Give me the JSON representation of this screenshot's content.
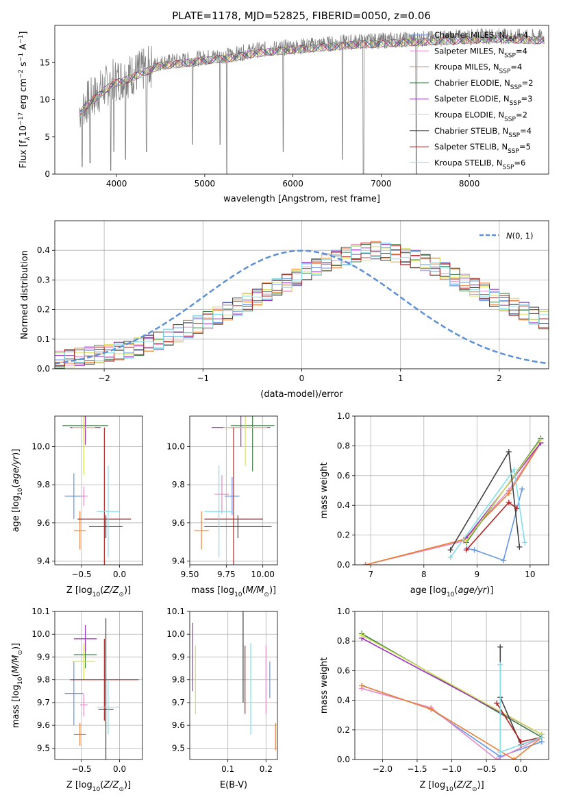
{
  "figure_title": "PLATE=1178, MJD=52825, FIBERID=0050, z=0.06",
  "colors": {
    "Chabrier MILES": "#6495ed",
    "Salpeter MILES": "#e78ac3",
    "Kroupa MILES": "#ed7d31",
    "Chabrier ELODIE": "#3a7d44",
    "Salpeter ELODIE": "#9b30c0",
    "Kroupa ELODIE": "#d4e157",
    "Chabrier STELIB": "#404040",
    "Salpeter STELIB": "#b22222",
    "Kroupa STELIB": "#80deea",
    "data": "#808080",
    "normal": "#5b8fd8"
  },
  "chart_data": [
    {
      "type": "line",
      "panel": "spectrum",
      "xlabel": "wavelength [Angstrom, rest frame]",
      "ylabel": "Flux [f_λ 10^-17 erg cm^-2 s^-1 A^-1]",
      "xlim": [
        3300,
        8900
      ],
      "ylim": [
        0,
        20
      ],
      "xticks": [
        "4000",
        "5000",
        "6000",
        "7000",
        "8000"
      ],
      "yticks": [
        "0",
        "5",
        "10",
        "15"
      ],
      "grid": false,
      "legend_position": "right",
      "legend": [
        {
          "model": "Chabrier MILES",
          "label": "Chabrier MILES, N",
          "sub": "SSP",
          "suffix": "=4"
        },
        {
          "model": "Salpeter MILES",
          "label": "Salpeter MILES, N",
          "sub": "SSP",
          "suffix": "=4"
        },
        {
          "model": "Kroupa MILES",
          "label": "Kroupa MILES, N",
          "sub": "SSP",
          "suffix": "=4"
        },
        {
          "model": "Chabrier ELODIE",
          "label": "Chabrier ELODIE, N",
          "sub": "SSP",
          "suffix": "=2"
        },
        {
          "model": "Salpeter ELODIE",
          "label": "Salpeter ELODIE, N",
          "sub": "SSP",
          "suffix": "=3"
        },
        {
          "model": "Kroupa ELODIE",
          "label": "Kroupa ELODIE, N",
          "sub": "SSP",
          "suffix": "=2"
        },
        {
          "model": "Chabrier STELIB",
          "label": "Chabrier STELIB, N",
          "sub": "SSP",
          "suffix": "=4"
        },
        {
          "model": "Salpeter STELIB",
          "label": "Salpeter STELIB, N",
          "sub": "SSP",
          "suffix": "=5"
        },
        {
          "model": "Kroupa STELIB",
          "label": "Kroupa STELIB, N",
          "sub": "SSP",
          "suffix": "=6"
        }
      ],
      "continuum": [
        [
          3580,
          8.5
        ],
        [
          3650,
          9.5
        ],
        [
          3750,
          10.5
        ],
        [
          3850,
          11.5
        ],
        [
          3950,
          12.5
        ],
        [
          4100,
          13.0
        ],
        [
          4300,
          14.0
        ],
        [
          4500,
          15.0
        ],
        [
          4700,
          15.2
        ],
        [
          4900,
          15.5
        ],
        [
          5100,
          15.8
        ],
        [
          5300,
          16.0
        ],
        [
          5500,
          16.5
        ],
        [
          5700,
          16.8
        ],
        [
          5900,
          17.0
        ],
        [
          6100,
          17.2
        ],
        [
          6300,
          17.4
        ],
        [
          6500,
          17.6
        ],
        [
          6700,
          17.8
        ],
        [
          6900,
          17.9
        ],
        [
          7100,
          18.0
        ],
        [
          7300,
          18.1
        ],
        [
          7500,
          18.2
        ],
        [
          7700,
          18.3
        ],
        [
          7900,
          18.4
        ],
        [
          8100,
          18.5
        ],
        [
          8300,
          18.6
        ],
        [
          8500,
          18.5
        ],
        [
          8700,
          18.4
        ],
        [
          8850,
          18.4
        ]
      ],
      "absorption_features": [
        [
          3610,
          1.0
        ],
        [
          3700,
          1.5
        ],
        [
          3934,
          0.5
        ],
        [
          3969,
          3.0
        ],
        [
          4102,
          2.0
        ],
        [
          4340,
          3.0
        ],
        [
          4861,
          4.0
        ],
        [
          5175,
          4.0
        ],
        [
          5250,
          0.0
        ],
        [
          5890,
          3.0
        ],
        [
          6563,
          2.0
        ],
        [
          6800,
          0.0
        ],
        [
          7400,
          0.0
        ]
      ]
    },
    {
      "type": "bar",
      "panel": "residual histogram",
      "xlabel": "(data-model)/error",
      "ylabel": "Normed distribution",
      "xlim": [
        -2.5,
        2.5
      ],
      "ylim": [
        0,
        0.5
      ],
      "xticks": [
        "−2",
        "−1",
        "0",
        "1",
        "2"
      ],
      "yticks": [
        "0.0",
        "0.1",
        "0.2",
        "0.3",
        "0.4"
      ],
      "grid": true,
      "legend_position": "top-right",
      "reference_label": "N(0,1)",
      "bin_width": 0.1,
      "bin_start": -2.5,
      "density_values": [
        0.03,
        0.035,
        0.04,
        0.045,
        0.05,
        0.055,
        0.06,
        0.065,
        0.075,
        0.085,
        0.095,
        0.105,
        0.12,
        0.135,
        0.15,
        0.165,
        0.18,
        0.195,
        0.21,
        0.225,
        0.24,
        0.26,
        0.275,
        0.29,
        0.31,
        0.33,
        0.345,
        0.36,
        0.37,
        0.38,
        0.39,
        0.395,
        0.4,
        0.395,
        0.39,
        0.38,
        0.37,
        0.36,
        0.345,
        0.33,
        0.31,
        0.29,
        0.275,
        0.26,
        0.24,
        0.225,
        0.21,
        0.195,
        0.18,
        0.165,
        0.15,
        0.135,
        0.12,
        0.105,
        0.095,
        0.085,
        0.075,
        0.065,
        0.06,
        0.055,
        0.05,
        0.045,
        0.04,
        0.035,
        0.03
      ]
    },
    {
      "type": "scatter",
      "panel": "age vs Z",
      "xlabel": "Z [log10(Z/Z⊙)]",
      "ylabel": "age [log10(age/yr)]",
      "xlim": [
        -0.85,
        0.3
      ],
      "ylim": [
        9.38,
        10.16
      ],
      "xticks": [
        "−0.5",
        "0.0"
      ],
      "yticks": [
        "9.4",
        "9.6",
        "9.8",
        "10.0"
      ],
      "grid": true,
      "points": [
        {
          "model": "Chabrier MILES",
          "x": -0.6,
          "y": 9.74,
          "xerr": 0.12,
          "yerr": 0.12
        },
        {
          "model": "Salpeter MILES",
          "x": -0.47,
          "y": 9.74,
          "xerr": 0.05,
          "yerr": 0.05
        },
        {
          "model": "Kroupa MILES",
          "x": -0.52,
          "y": 9.56,
          "xerr": 0.08,
          "yerr": 0.1
        },
        {
          "model": "Chabrier ELODIE",
          "x": -0.45,
          "y": 10.11,
          "xerr": 0.3,
          "yerr": 0.1
        },
        {
          "model": "Salpeter ELODIE",
          "x": -0.45,
          "y": 10.1,
          "xerr": 0.2,
          "yerr": 0.09
        },
        {
          "model": "Kroupa ELODIE",
          "x": -0.47,
          "y": 10.1,
          "xerr": 0.15,
          "yerr": 0.25
        },
        {
          "model": "Chabrier STELIB",
          "x": -0.18,
          "y": 9.58,
          "xerr": 0.22,
          "yerr": 0.06
        },
        {
          "model": "Salpeter STELIB",
          "x": -0.2,
          "y": 9.62,
          "xerr": 0.35,
          "yerr": 0.48
        },
        {
          "model": "Kroupa STELIB",
          "x": -0.15,
          "y": 9.66,
          "xerr": 0.15,
          "yerr": 0.24
        }
      ]
    },
    {
      "type": "scatter",
      "panel": "age vs mass",
      "xlabel": "mass [log10(M/M⊙)]",
      "ylabel": "",
      "xlim": [
        9.5,
        10.1
      ],
      "ylim": [
        9.38,
        10.16
      ],
      "xticks": [
        "9.50",
        "9.75",
        "10.00"
      ],
      "yticks": [
        "9.4",
        "9.6",
        "9.8",
        "10.0"
      ],
      "grid": true,
      "points": [
        {
          "model": "Chabrier MILES",
          "x": 9.79,
          "y": 9.74,
          "xerr": 0.05,
          "yerr": 0.1
        },
        {
          "model": "Salpeter MILES",
          "x": 9.72,
          "y": 9.75,
          "xerr": 0.05,
          "yerr": 0.1
        },
        {
          "model": "Kroupa MILES",
          "x": 9.58,
          "y": 9.56,
          "xerr": 0.05,
          "yerr": 0.1
        },
        {
          "model": "Chabrier ELODIE",
          "x": 9.93,
          "y": 10.11,
          "xerr": 0.15,
          "yerr": 0.24
        },
        {
          "model": "Salpeter ELODIE",
          "x": 9.85,
          "y": 10.1,
          "xerr": 0.2,
          "yerr": 0.1
        },
        {
          "model": "Kroupa ELODIE",
          "x": 9.88,
          "y": 10.1,
          "xerr": 0.15,
          "yerr": 0.2
        },
        {
          "model": "Chabrier STELIB",
          "x": 9.83,
          "y": 9.58,
          "xerr": 0.23,
          "yerr": 0.06
        },
        {
          "model": "Salpeter STELIB",
          "x": 9.8,
          "y": 9.62,
          "xerr": 0.2,
          "yerr": 0.48
        },
        {
          "model": "Kroupa STELIB",
          "x": 9.7,
          "y": 9.66,
          "xerr": 0.1,
          "yerr": 0.24
        }
      ]
    },
    {
      "type": "line",
      "panel": "mass weight vs age",
      "xlabel": "age [log10(age/yr)]",
      "ylabel": "mass weight",
      "xlim": [
        6.7,
        10.35
      ],
      "ylim": [
        0,
        1
      ],
      "xticks": [
        "7",
        "8",
        "9",
        "10"
      ],
      "yticks": [
        "0.0",
        "0.2",
        "0.4",
        "0.6",
        "0.8",
        "1.0"
      ],
      "grid": true,
      "series": [
        {
          "model": "Chabrier MILES",
          "x": [
            8.81,
            8.95,
            9.5,
            9.85
          ],
          "y": [
            0.11,
            0.1,
            0.03,
            0.51
          ]
        },
        {
          "model": "Salpeter MILES",
          "x": [
            6.9,
            8.75,
            9.6,
            10.2
          ],
          "y": [
            0.0,
            0.16,
            0.5,
            0.82
          ]
        },
        {
          "model": "Kroupa MILES",
          "x": [
            6.9,
            8.75,
            9.6,
            10.2
          ],
          "y": [
            0.0,
            0.17,
            0.48,
            0.82
          ]
        },
        {
          "model": "Chabrier ELODIE",
          "x": [
            8.8,
            10.2
          ],
          "y": [
            0.15,
            0.85
          ]
        },
        {
          "model": "Salpeter ELODIE",
          "x": [
            8.8,
            10.2
          ],
          "y": [
            0.18,
            0.82
          ]
        },
        {
          "model": "Kroupa ELODIE",
          "x": [
            8.8,
            10.2
          ],
          "y": [
            0.16,
            0.84
          ]
        },
        {
          "model": "Chabrier STELIB",
          "x": [
            8.5,
            9.6,
            9.8
          ],
          "y": [
            0.1,
            0.76,
            0.12
          ]
        },
        {
          "model": "Salpeter STELIB",
          "x": [
            8.8,
            9.6,
            9.75
          ],
          "y": [
            0.1,
            0.42,
            0.38
          ]
        },
        {
          "model": "Kroupa STELIB",
          "x": [
            8.5,
            9.7,
            9.9
          ],
          "y": [
            0.05,
            0.64,
            0.15
          ]
        }
      ]
    },
    {
      "type": "scatter",
      "panel": "mass vs Z",
      "xlabel": "Z [log10(Z/Z⊙)]",
      "ylabel": "mass [log10(M/M⊙)]",
      "xlim": [
        -0.85,
        0.3
      ],
      "ylim": [
        9.45,
        10.1
      ],
      "xticks": [
        "−0.5",
        "0.0"
      ],
      "yticks": [
        "9.5",
        "9.6",
        "9.7",
        "9.8",
        "9.9",
        "10.0",
        "10.1"
      ],
      "grid": true,
      "points": [
        {
          "model": "Chabrier MILES",
          "x": -0.6,
          "y": 9.74,
          "xerr": 0.12,
          "yerr": 0.14
        },
        {
          "model": "Salpeter MILES",
          "x": -0.47,
          "y": 9.69,
          "xerr": 0.05,
          "yerr": 0.05
        },
        {
          "model": "Kroupa MILES",
          "x": -0.52,
          "y": 9.56,
          "xerr": 0.08,
          "yerr": 0.05
        },
        {
          "model": "Chabrier ELODIE",
          "x": -0.45,
          "y": 9.91,
          "xerr": 0.15,
          "yerr": 0.06
        },
        {
          "model": "Salpeter ELODIE",
          "x": -0.45,
          "y": 9.98,
          "xerr": 0.15,
          "yerr": 0.06
        },
        {
          "model": "Kroupa ELODIE",
          "x": -0.47,
          "y": 9.88,
          "xerr": 0.15,
          "yerr": 0.08
        },
        {
          "model": "Chabrier STELIB",
          "x": -0.18,
          "y": 9.67,
          "xerr": 0.1,
          "yerr": 0.4
        },
        {
          "model": "Salpeter STELIB",
          "x": -0.2,
          "y": 9.8,
          "xerr": 0.45,
          "yerr": 0.18
        },
        {
          "model": "Kroupa STELIB",
          "x": -0.15,
          "y": 9.68,
          "xerr": 0.15,
          "yerr": 0.12
        }
      ]
    },
    {
      "type": "scatter",
      "panel": "mass vs E(B-V)",
      "xlabel": "E(B-V)",
      "ylabel": "",
      "xlim": [
        0,
        0.23
      ],
      "ylim": [
        9.45,
        10.1
      ],
      "xticks": [
        "0.1",
        "0.2"
      ],
      "yticks": [
        "9.5",
        "9.6",
        "9.7",
        "9.8",
        "9.9",
        "10.0",
        "10.1"
      ],
      "grid": true,
      "points": [
        {
          "model": "Salpeter ELODIE",
          "x": 0.008,
          "y": 9.9,
          "yerr": 0.15
        },
        {
          "model": "Kroupa ELODIE",
          "x": 0.015,
          "y": 9.8,
          "yerr": 0.15
        },
        {
          "model": "Chabrier STELIB",
          "x": 0.14,
          "y": 9.9,
          "yerr": 0.2
        },
        {
          "model": "Salpeter STELIB",
          "x": 0.145,
          "y": 9.8,
          "yerr": 0.15
        },
        {
          "model": "Kroupa STELIB",
          "x": 0.16,
          "y": 9.76,
          "yerr": 0.2
        },
        {
          "model": "Salpeter MILES",
          "x": 0.2,
          "y": 9.8,
          "yerr": 0.15
        },
        {
          "model": "Chabrier MILES",
          "x": 0.21,
          "y": 9.8,
          "yerr": 0.08
        },
        {
          "model": "Kroupa MILES",
          "x": 0.225,
          "y": 9.55,
          "yerr": 0.06
        }
      ]
    },
    {
      "type": "line",
      "panel": "mass weight vs Z",
      "xlabel": "Z [log10(Z/Z⊙)]",
      "ylabel": "mass weight",
      "xlim": [
        -2.4,
        0.4
      ],
      "ylim": [
        0,
        1
      ],
      "xticks": [
        "−2.0",
        "−1.5",
        "−1.0",
        "−0.5",
        "0.0"
      ],
      "yticks": [
        "0.0",
        "0.2",
        "0.4",
        "0.6",
        "0.8",
        "1.0"
      ],
      "grid": true,
      "series": [
        {
          "model": "Chabrier MILES",
          "x": [
            -2.3,
            -1.3,
            -0.3,
            0.3
          ],
          "y": [
            0.5,
            0.34,
            0.02,
            0.12
          ]
        },
        {
          "model": "Salpeter MILES",
          "x": [
            -2.3,
            -1.3,
            -0.35,
            0.3
          ],
          "y": [
            0.48,
            0.35,
            0.0,
            0.15
          ]
        },
        {
          "model": "Kroupa MILES",
          "x": [
            -2.3,
            -1.3,
            -0.1,
            0.3
          ],
          "y": [
            0.5,
            0.34,
            0.0,
            0.15
          ]
        },
        {
          "model": "Chabrier ELODIE",
          "x": [
            -2.3,
            0.3
          ],
          "y": [
            0.85,
            0.15
          ]
        },
        {
          "model": "Salpeter ELODIE",
          "x": [
            -2.3,
            0.3
          ],
          "y": [
            0.82,
            0.17
          ]
        },
        {
          "model": "Kroupa ELODIE",
          "x": [
            -2.3,
            0.3
          ],
          "y": [
            0.84,
            0.17
          ]
        },
        {
          "model": "Chabrier STELIB",
          "x": [
            -0.3,
            -0.3,
            0.0,
            0.3
          ],
          "y": [
            0.76,
            0.42,
            0.1,
            0.15
          ]
        },
        {
          "model": "Salpeter STELIB",
          "x": [
            -0.35,
            0.0,
            0.3
          ],
          "y": [
            0.38,
            0.12,
            0.15
          ]
        },
        {
          "model": "Kroupa STELIB",
          "x": [
            -0.3,
            -0.3,
            0.3
          ],
          "y": [
            0.64,
            0.05,
            0.15
          ]
        }
      ]
    }
  ]
}
